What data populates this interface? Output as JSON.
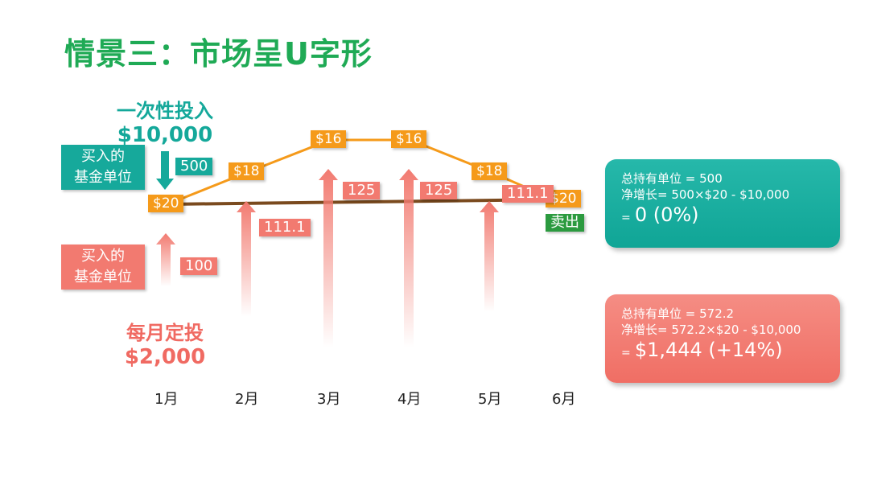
{
  "title": "情景三：市场呈U字形",
  "lump_sum": {
    "heading": "一次性投入",
    "amount": "$10,000",
    "units_label_line1": "买入的",
    "units_label_line2": "基金单位",
    "units": "500",
    "sell_label": "卖出"
  },
  "dca": {
    "heading": "每月定投",
    "amount": "$2,000",
    "units_label_line1": "买入的",
    "units_label_line2": "基金单位",
    "units": [
      "100",
      "111.1",
      "125",
      "125",
      "111.1"
    ]
  },
  "chart_data": {
    "type": "line",
    "categories": [
      "1月",
      "2月",
      "3月",
      "4月",
      "5月",
      "6月"
    ],
    "series": [
      {
        "values": [
          20,
          18,
          16,
          16,
          18,
          20
        ]
      }
    ],
    "point_labels": [
      "$20",
      "$18",
      "$16",
      "$16",
      "$18",
      "$20"
    ],
    "dca_units": [
      100,
      111.1,
      125,
      125,
      111.1
    ],
    "lump_units": 500,
    "colors": {
      "price_line": "#f59a1a",
      "lump_line": "#7a4a1e",
      "dca_arrow": "#f27a70",
      "lump_arrow": "#16a99b"
    }
  },
  "panels": {
    "lump": {
      "line1": "总持有单位 = 500",
      "line2": "净增长= 500×$20 - $10,000",
      "eq": "=",
      "result": "0 (0%)"
    },
    "dca": {
      "line1": "总持有单位 = 572.2",
      "line2": "净增长= 572.2×$20 - $10,000",
      "eq": "=",
      "result": "$1,444 (+14%)"
    }
  },
  "colors": {
    "title": "#1faa55",
    "teal": "#16a99b",
    "salmon": "#f27a70",
    "orange": "#f59a1a",
    "brown": "#7a4a1e",
    "green": "#2b9a3f"
  }
}
